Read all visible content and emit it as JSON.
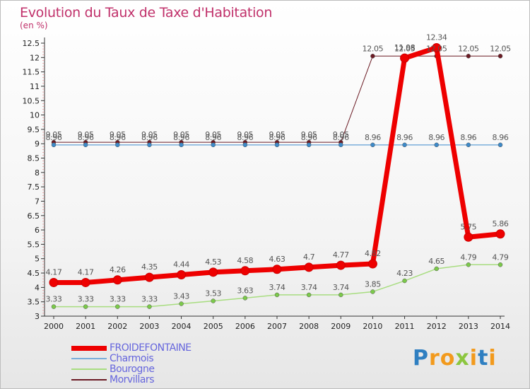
{
  "chart_data": {
    "type": "line",
    "title": "Evolution du Taux de Taxe d'Habitation",
    "unit_label": "(en %)",
    "x": [
      "2000",
      "2001",
      "2002",
      "2003",
      "2004",
      "2005",
      "2006",
      "2007",
      "2008",
      "2009",
      "2010",
      "2011",
      "2012",
      "2013",
      "2014"
    ],
    "y_ticks": [
      "3",
      "3.5",
      "4",
      "4.5",
      "5",
      "5.5",
      "6",
      "6.5",
      "7",
      "7.5",
      "8",
      "8.5",
      "9",
      "9.5",
      "10",
      "10.5",
      "11",
      "11.5",
      "12",
      "12.5"
    ],
    "ylim": [
      3,
      12.5
    ],
    "grid": false,
    "legend_position": "bottom-left",
    "series": [
      {
        "name": "Morvillars",
        "color": "#6b1b24",
        "line_width": 1,
        "marker": "#6b1b24",
        "values": [
          9.05,
          9.05,
          9.05,
          9.05,
          9.05,
          9.05,
          9.05,
          9.05,
          9.05,
          9.05,
          12.05,
          12.05,
          12.05,
          12.05,
          12.05
        ],
        "labels": [
          "9.05",
          "9.05",
          "9.05",
          "9.05",
          "9.05",
          "9.05",
          "9.05",
          "9.05",
          "9.05",
          "9.05",
          "12.05",
          "12.05",
          "12.05",
          "12.05",
          "12.05"
        ]
      },
      {
        "name": "Charmois",
        "color": "#7aaedb",
        "line_width": 1.5,
        "marker": "#3d8ac9",
        "values": [
          8.96,
          8.96,
          8.96,
          8.96,
          8.96,
          8.96,
          8.96,
          8.96,
          8.96,
          8.96,
          8.96,
          8.96,
          8.96,
          8.96,
          8.96
        ],
        "labels": [
          "8.96",
          "8.96",
          "8.96",
          "8.96",
          "8.96",
          "8.96",
          "8.96",
          "8.96",
          "8.96",
          "8.96",
          "8.96",
          "8.96",
          "8.96",
          "8.96",
          "8.96"
        ]
      },
      {
        "name": "Bourogne",
        "color": "#a8dd80",
        "line_width": 1.5,
        "marker": "#7bc94a",
        "values": [
          3.33,
          3.33,
          3.33,
          3.33,
          3.43,
          3.53,
          3.63,
          3.74,
          3.74,
          3.74,
          3.85,
          4.23,
          4.65,
          4.79,
          4.79
        ],
        "labels": [
          "3.33",
          "3.33",
          "3.33",
          "3.33",
          "3.43",
          "3.53",
          "3.63",
          "3.74",
          "3.74",
          "3.74",
          "3.85",
          "4.23",
          "4.65",
          "4.79",
          "4.79"
        ]
      },
      {
        "name": "FROIDEFONTAINE",
        "color": "#ee0000",
        "line_width": 7,
        "marker": "#ee0000",
        "values": [
          4.17,
          4.17,
          4.26,
          4.35,
          4.44,
          4.53,
          4.58,
          4.63,
          4.7,
          4.77,
          4.82,
          11.98,
          12.34,
          5.75,
          5.86
        ],
        "labels": [
          "4.17",
          "4.17",
          "4.26",
          "4.35",
          "4.44",
          "4.53",
          "4.58",
          "4.63",
          "4.7",
          "4.77",
          "4.82",
          "11.98",
          "12.34",
          "5.75",
          "5.86"
        ]
      }
    ]
  },
  "legend": {
    "items": [
      {
        "label": "FROIDEFONTAINE",
        "color": "#ee0000",
        "thickness": 7
      },
      {
        "label": "Charmois",
        "color": "#7aaedb",
        "thickness": 2
      },
      {
        "label": "Bourogne",
        "color": "#a8dd80",
        "thickness": 2
      },
      {
        "label": "Morvillars",
        "color": "#6b1b24",
        "thickness": 2
      }
    ]
  },
  "logo": {
    "letters": [
      {
        "ch": "P",
        "color": "#2f7fc1"
      },
      {
        "ch": "r",
        "color": "#f29a1d"
      },
      {
        "ch": "o",
        "color": "#f29a1d"
      },
      {
        "ch": "x",
        "color": "#8cc63f"
      },
      {
        "ch": "i",
        "color": "#f29a1d"
      },
      {
        "ch": "t",
        "color": "#2f7fc1"
      },
      {
        "ch": "i",
        "color": "#f29a1d"
      }
    ]
  }
}
